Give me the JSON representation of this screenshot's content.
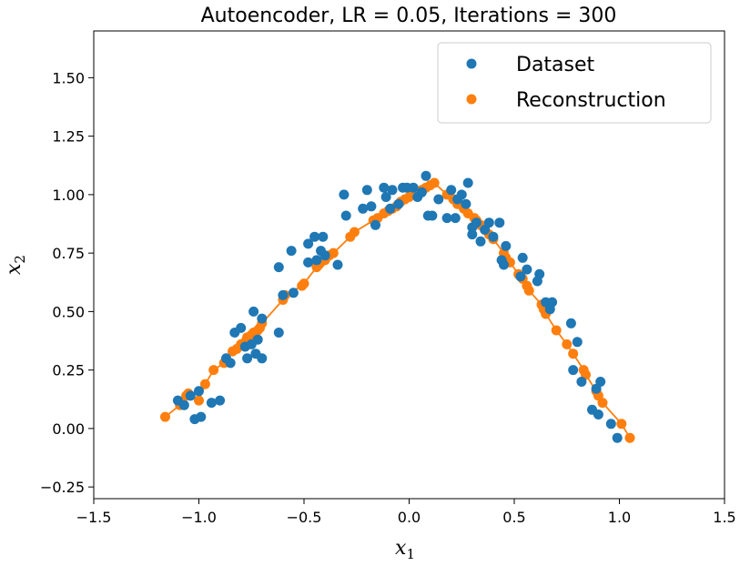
{
  "chart_data": {
    "type": "scatter",
    "title": "Autoencoder, LR = 0.05, Iterations = 300",
    "xlabel": "x",
    "xlabel_sub": "1",
    "ylabel": "x",
    "ylabel_sub": "2",
    "xlim": [
      -1.5,
      1.5
    ],
    "ylim": [
      -0.3,
      1.7
    ],
    "xticks": [
      -1.5,
      -1.0,
      -0.5,
      0.0,
      0.5,
      1.0,
      1.5
    ],
    "xtick_labels": [
      "−1.5",
      "−1.0",
      "−0.5",
      "0.0",
      "0.5",
      "1.0",
      "1.5"
    ],
    "yticks": [
      -0.25,
      0.0,
      0.25,
      0.5,
      0.75,
      1.0,
      1.25,
      1.5
    ],
    "ytick_labels": [
      "−0.25",
      "0.00",
      "0.25",
      "0.50",
      "0.75",
      "1.00",
      "1.25",
      "1.50"
    ],
    "grid": false,
    "legend_position": "top-right",
    "colors": {
      "dataset": "#1f77b4",
      "reconstruction": "#ff7f0e"
    },
    "series": [
      {
        "name": "Dataset",
        "points": [
          [
            -1.1,
            0.12
          ],
          [
            -1.07,
            0.1
          ],
          [
            -1.04,
            0.14
          ],
          [
            -1.02,
            0.04
          ],
          [
            -1.0,
            0.16
          ],
          [
            -0.99,
            0.05
          ],
          [
            -0.94,
            0.11
          ],
          [
            -0.9,
            0.12
          ],
          [
            -0.87,
            0.3
          ],
          [
            -0.85,
            0.28
          ],
          [
            -0.83,
            0.41
          ],
          [
            -0.8,
            0.43
          ],
          [
            -0.78,
            0.35
          ],
          [
            -0.77,
            0.3
          ],
          [
            -0.75,
            0.36
          ],
          [
            -0.74,
            0.5
          ],
          [
            -0.73,
            0.32
          ],
          [
            -0.72,
            0.38
          ],
          [
            -0.7,
            0.3
          ],
          [
            -0.7,
            0.47
          ],
          [
            -0.62,
            0.69
          ],
          [
            -0.62,
            0.41
          ],
          [
            -0.6,
            0.57
          ],
          [
            -0.56,
            0.76
          ],
          [
            -0.55,
            0.58
          ],
          [
            -0.48,
            0.79
          ],
          [
            -0.48,
            0.71
          ],
          [
            -0.45,
            0.82
          ],
          [
            -0.44,
            0.72
          ],
          [
            -0.42,
            0.76
          ],
          [
            -0.41,
            0.82
          ],
          [
            -0.4,
            0.74
          ],
          [
            -0.34,
            0.7
          ],
          [
            -0.31,
            1.0
          ],
          [
            -0.3,
            0.91
          ],
          [
            -0.22,
            0.94
          ],
          [
            -0.2,
            1.02
          ],
          [
            -0.18,
            0.95
          ],
          [
            -0.16,
            0.87
          ],
          [
            -0.12,
            1.03
          ],
          [
            -0.11,
            0.99
          ],
          [
            -0.09,
            0.94
          ],
          [
            -0.08,
            1.02
          ],
          [
            -0.05,
            0.96
          ],
          [
            -0.03,
            1.03
          ],
          [
            -0.01,
            1.03
          ],
          [
            0.02,
            1.03
          ],
          [
            0.04,
            0.99
          ],
          [
            0.06,
            1.01
          ],
          [
            0.08,
            1.08
          ],
          [
            0.09,
            0.91
          ],
          [
            0.11,
            0.91
          ],
          [
            0.14,
            0.98
          ],
          [
            0.18,
            0.9
          ],
          [
            0.2,
            1.02
          ],
          [
            0.22,
            0.9
          ],
          [
            0.23,
            0.98
          ],
          [
            0.25,
            1.0
          ],
          [
            0.27,
            0.96
          ],
          [
            0.28,
            1.05
          ],
          [
            0.3,
            0.86
          ],
          [
            0.3,
            0.83
          ],
          [
            0.32,
            0.88
          ],
          [
            0.34,
            0.8
          ],
          [
            0.36,
            0.85
          ],
          [
            0.38,
            0.88
          ],
          [
            0.4,
            0.82
          ],
          [
            0.43,
            0.88
          ],
          [
            0.44,
            0.72
          ],
          [
            0.45,
            0.7
          ],
          [
            0.46,
            0.78
          ],
          [
            0.53,
            0.65
          ],
          [
            0.54,
            0.73
          ],
          [
            0.56,
            0.68
          ],
          [
            0.61,
            0.63
          ],
          [
            0.62,
            0.66
          ],
          [
            0.65,
            0.54
          ],
          [
            0.67,
            0.51
          ],
          [
            0.68,
            0.54
          ],
          [
            0.77,
            0.45
          ],
          [
            0.78,
            0.25
          ],
          [
            0.8,
            0.37
          ],
          [
            0.82,
            0.2
          ],
          [
            0.87,
            0.08
          ],
          [
            0.89,
            0.17
          ],
          [
            0.9,
            0.06
          ],
          [
            0.91,
            0.2
          ],
          [
            0.96,
            0.02
          ],
          [
            0.99,
            -0.04
          ]
        ]
      },
      {
        "name": "Reconstruction",
        "points": [
          [
            -1.16,
            0.05
          ],
          [
            -1.09,
            0.1
          ],
          [
            -1.06,
            0.14
          ],
          [
            -1.05,
            0.15
          ],
          [
            -1.0,
            0.12
          ],
          [
            -0.97,
            0.19
          ],
          [
            -0.93,
            0.25
          ],
          [
            -0.88,
            0.28
          ],
          [
            -0.87,
            0.29
          ],
          [
            -0.84,
            0.33
          ],
          [
            -0.82,
            0.34
          ],
          [
            -0.8,
            0.36
          ],
          [
            -0.78,
            0.37
          ],
          [
            -0.77,
            0.39
          ],
          [
            -0.75,
            0.4
          ],
          [
            -0.74,
            0.41
          ],
          [
            -0.72,
            0.42
          ],
          [
            -0.71,
            0.43
          ],
          [
            -0.7,
            0.45
          ],
          [
            -0.6,
            0.55
          ],
          [
            -0.59,
            0.57
          ],
          [
            -0.51,
            0.61
          ],
          [
            -0.5,
            0.62
          ],
          [
            -0.44,
            0.69
          ],
          [
            -0.43,
            0.7
          ],
          [
            -0.42,
            0.71
          ],
          [
            -0.4,
            0.72
          ],
          [
            -0.38,
            0.74
          ],
          [
            -0.36,
            0.75
          ],
          [
            -0.28,
            0.82
          ],
          [
            -0.26,
            0.84
          ],
          [
            -0.17,
            0.89
          ],
          [
            -0.15,
            0.9
          ],
          [
            -0.12,
            0.92
          ],
          [
            -0.1,
            0.93
          ],
          [
            -0.08,
            0.94
          ],
          [
            -0.06,
            0.95
          ],
          [
            -0.04,
            0.97
          ],
          [
            -0.02,
            0.98
          ],
          [
            0.0,
            0.99
          ],
          [
            0.02,
            1.0
          ],
          [
            0.04,
            1.01
          ],
          [
            0.06,
            1.02
          ],
          [
            0.08,
            1.03
          ],
          [
            0.1,
            1.04
          ],
          [
            0.12,
            1.05
          ],
          [
            0.18,
            1.0
          ],
          [
            0.21,
            0.98
          ],
          [
            0.23,
            0.96
          ],
          [
            0.26,
            0.94
          ],
          [
            0.28,
            0.92
          ],
          [
            0.31,
            0.9
          ],
          [
            0.32,
            0.89
          ],
          [
            0.34,
            0.87
          ],
          [
            0.36,
            0.85
          ],
          [
            0.38,
            0.83
          ],
          [
            0.4,
            0.81
          ],
          [
            0.45,
            0.75
          ],
          [
            0.46,
            0.73
          ],
          [
            0.48,
            0.71
          ],
          [
            0.52,
            0.66
          ],
          [
            0.54,
            0.64
          ],
          [
            0.56,
            0.61
          ],
          [
            0.57,
            0.59
          ],
          [
            0.63,
            0.53
          ],
          [
            0.64,
            0.51
          ],
          [
            0.65,
            0.49
          ],
          [
            0.7,
            0.42
          ],
          [
            0.75,
            0.36
          ],
          [
            0.78,
            0.32
          ],
          [
            0.83,
            0.25
          ],
          [
            0.84,
            0.23
          ],
          [
            0.89,
            0.16
          ],
          [
            0.9,
            0.14
          ],
          [
            0.92,
            0.11
          ],
          [
            1.01,
            0.02
          ],
          [
            1.05,
            -0.04
          ]
        ]
      }
    ]
  }
}
